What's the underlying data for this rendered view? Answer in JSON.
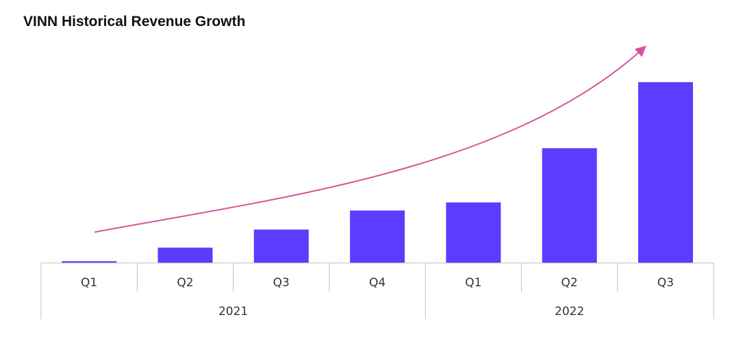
{
  "title": "VINN Historical Revenue Growth",
  "colors": {
    "bar": "#5a3dff",
    "trend_arrow": "#d6549b",
    "axis": "#bfbfbf"
  },
  "chart_data": {
    "type": "bar",
    "title": "VINN Historical Revenue Growth",
    "xlabel": "",
    "ylabel": "",
    "y_axis_shown": false,
    "grid": false,
    "categories": [
      "Q1",
      "Q2",
      "Q3",
      "Q4",
      "Q1",
      "Q2",
      "Q3"
    ],
    "groups": [
      {
        "label": "2021",
        "categories": [
          "Q1",
          "Q2",
          "Q3",
          "Q4"
        ]
      },
      {
        "label": "2022",
        "categories": [
          "Q1",
          "Q2",
          "Q3"
        ]
      }
    ],
    "values": [
      1,
      8.5,
      18.5,
      29,
      33.5,
      63.5,
      100
    ],
    "value_scale": "relative (no axis values printed; tallest bar = 100)",
    "annotations": [
      "upward trend arrow"
    ]
  }
}
